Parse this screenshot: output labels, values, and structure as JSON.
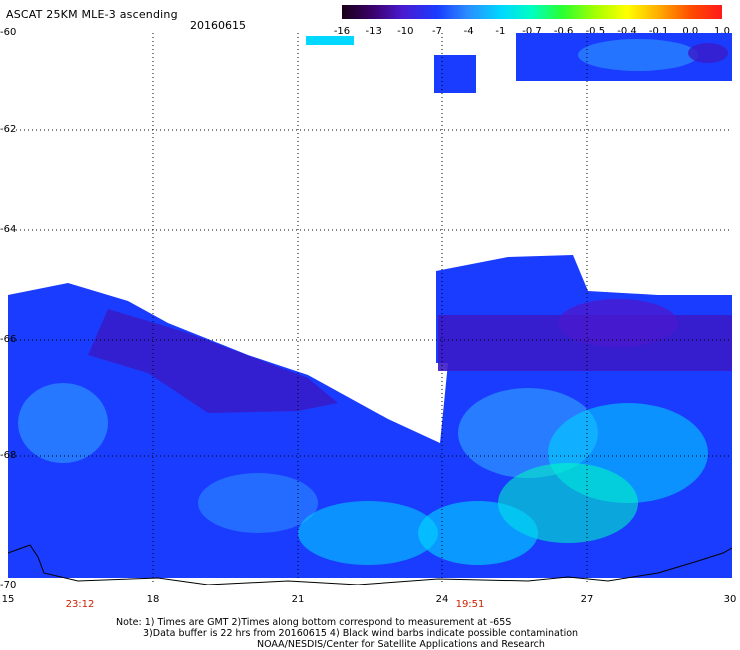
{
  "header": {
    "title": "ASCAT 25KM MLE-3 ascending",
    "date": "20160615"
  },
  "colorbar": {
    "ticks": [
      "-16",
      "-13",
      "-10",
      "-7",
      "-4",
      "-1",
      "-0.7",
      "-0.6",
      "-0.5",
      "-0.4",
      "-0.1",
      "0.0",
      "1.0"
    ],
    "colors": [
      "#1a0016",
      "#3a006a",
      "#4a1ad0",
      "#1a3cff",
      "#2a8cff",
      "#00d8ff",
      "#00ffc0",
      "#2aff30",
      "#a8ff00",
      "#ffff00",
      "#ffb000",
      "#ff4a00",
      "#ff1a1a"
    ]
  },
  "axes": {
    "lat_labels": [
      "-60",
      "-62",
      "-64",
      "-66",
      "-68",
      "-70"
    ],
    "lon_labels": [
      "15",
      "18",
      "21",
      "24",
      "27",
      "30"
    ],
    "time_labels": [
      "23:12",
      "19:51"
    ]
  },
  "notes": {
    "line1": "Note: 1) Times are GMT 2)Times along bottom correspond to measurement at -65S",
    "line2": "3)Data buffer is 22 hrs from 20160615 4) Black wind barbs indicate possible contamination",
    "line3": "NOAA/NESDIS/Center for Satellite Applications and Research"
  }
}
